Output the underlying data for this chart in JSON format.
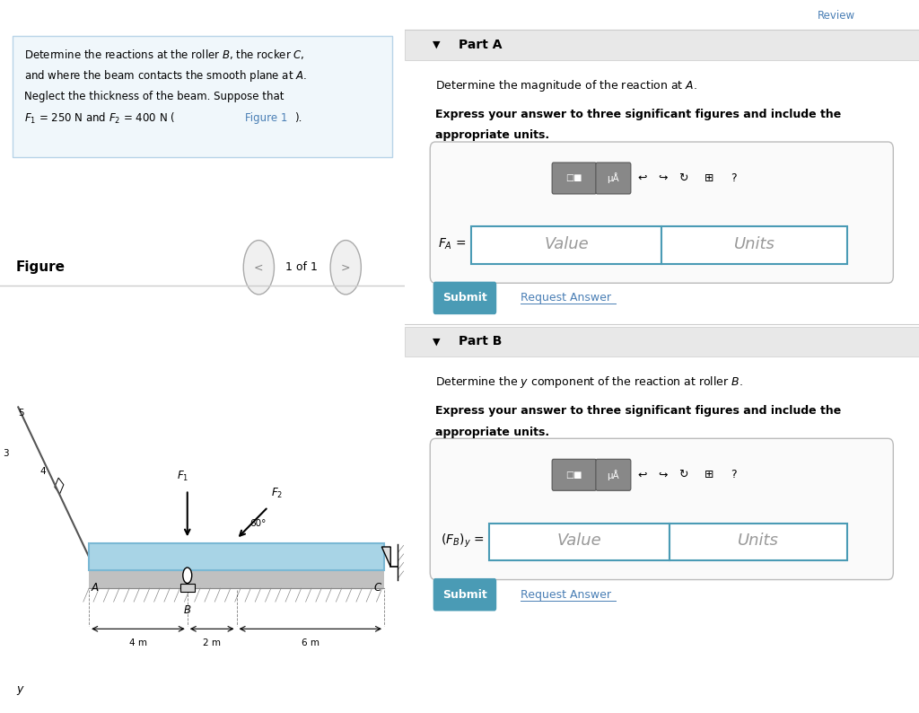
{
  "bg_color": "#ffffff",
  "left_panel_bg": "#f0f7fb",
  "left_panel_border": "#b8d4e8",
  "divider_color": "#cccccc",
  "submit_bg": "#4a9bb5",
  "submit_text_color": "#ffffff",
  "link_color": "#4a7fb5",
  "toolbar_bg": "#888888",
  "input_border": "#4a9bb5",
  "part_header_bg": "#e8e8e8",
  "beam_color": "#a8d4e6",
  "beam_border": "#7ab8d4",
  "submit_text": "Submit",
  "request_answer_text": "Request Answer",
  "dim_4m": "4 m",
  "dim_2m": "2 m",
  "dim_6m": "6 m",
  "figure_label": "Figure",
  "nav_text": "1 of 1"
}
